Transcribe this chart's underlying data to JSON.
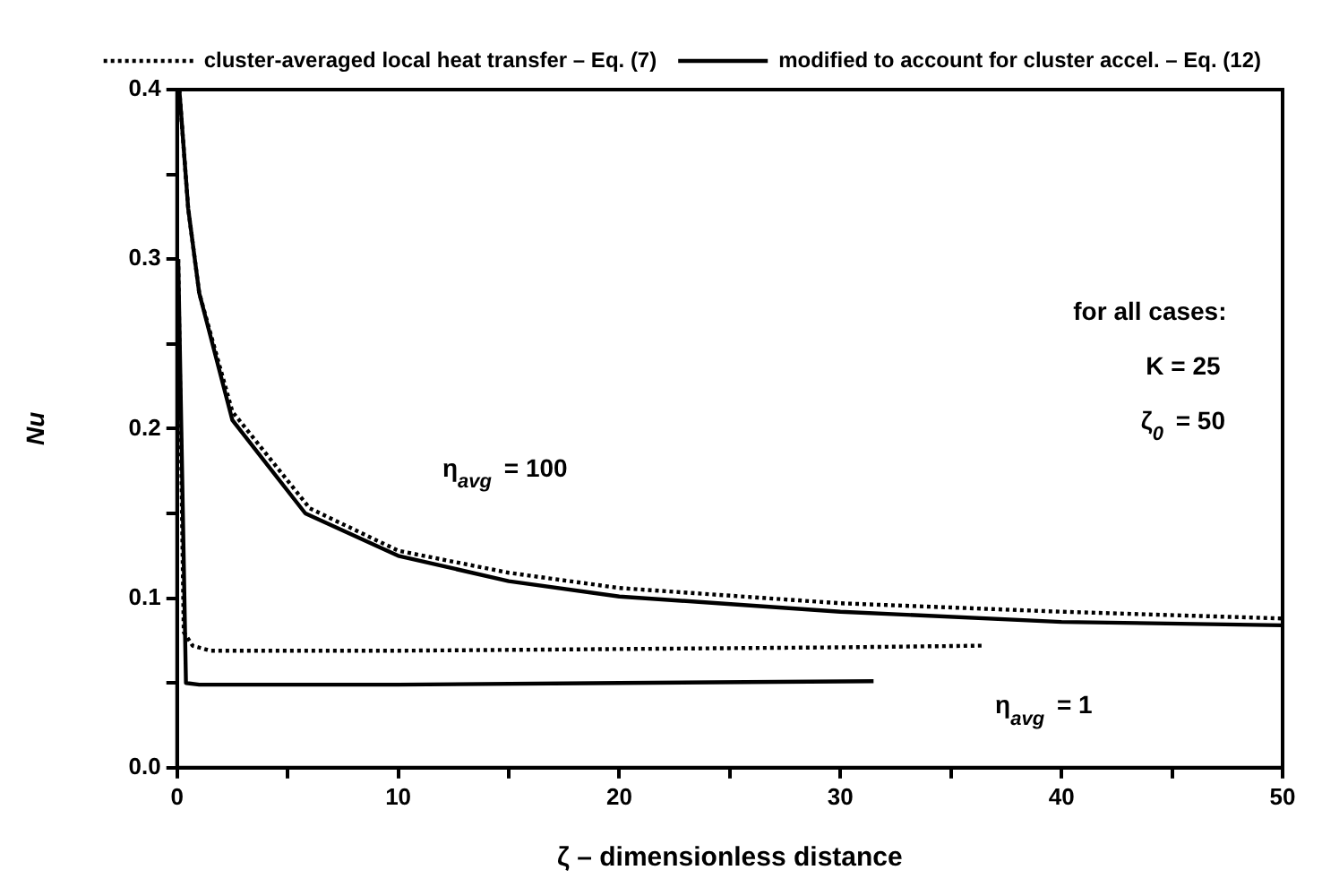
{
  "chart_data": {
    "type": "line",
    "xlabel": "ζ – dimensionless distance",
    "ylabel": "Nu",
    "xlim": [
      0,
      50
    ],
    "xticks": [
      0,
      {
        "value": 5,
        "label": null
      },
      10,
      {
        "value": 15,
        "label": null
      },
      20,
      {
        "value": 25,
        "label": null
      },
      30,
      {
        "value": 35,
        "label": null
      },
      40,
      {
        "value": 45,
        "label": null
      },
      50
    ],
    "ylim": [
      0,
      0.4
    ],
    "yticks": [
      "0.0",
      {
        "value": 0.05,
        "label": null
      },
      0.1,
      {
        "value": 0.15,
        "label": null
      },
      0.2,
      {
        "value": 0.25,
        "label": null
      },
      0.3,
      {
        "value": 0.35,
        "label": null
      },
      0.4
    ],
    "grid": false,
    "legend": "top right",
    "marker": "none",
    "series": [
      {
        "name": "cluster-averaged local heat transfer – Eq. (7)",
        "color": "#000000",
        "line_style": "dotted",
        "x": [
          0.1,
          0.5,
          1,
          2.5,
          6,
          10,
          15,
          20,
          30,
          40,
          50
        ],
        "values": [
          0.4,
          0.33,
          0.28,
          0.21,
          0.153,
          0.128,
          0.115,
          0.106,
          0.097,
          0.092,
          0.088
        ]
      },
      {
        "name": "modified to account for cluster accel. – Eq. (12)",
        "color": "#000000",
        "line_style": "solid",
        "x": [
          0.1,
          0.5,
          1,
          2.5,
          5.8,
          10,
          15,
          20,
          30,
          40,
          50
        ],
        "values": [
          0.4,
          0.33,
          0.28,
          0.205,
          0.15,
          0.125,
          0.11,
          0.101,
          0.092,
          0.086,
          0.084
        ]
      },
      {
        "color": "#000000",
        "line_style": "dotted",
        "x": [
          0.05,
          0.3,
          0.7,
          1.5,
          10,
          20,
          30,
          36.5
        ],
        "values": [
          0.3,
          0.08,
          0.072,
          0.069,
          0.069,
          0.07,
          0.071,
          0.072
        ]
      },
      {
        "color": "#000000",
        "line_style": "solid",
        "x": [
          0.05,
          0.4,
          1,
          10,
          20,
          31.5
        ],
        "values": [
          0.3,
          0.05,
          0.049,
          0.049,
          0.05,
          0.051
        ]
      }
    ],
    "annotations": [
      "η$_{avg}$ = 100",
      "η$_{avg}$ = 1",
      "for all cases:",
      "K = 25",
      "ζ$_{0}$ = 50"
    ]
  }
}
